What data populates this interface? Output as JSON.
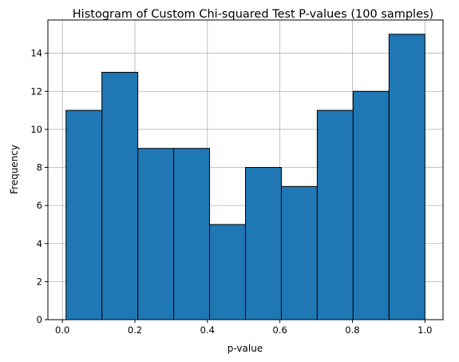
{
  "chart_data": {
    "type": "bar",
    "title": "Histogram of Custom Chi-squared Test P-values (100 samples)",
    "xlabel": "p-value",
    "ylabel": "Frequency",
    "xlim": [
      -0.04,
      1.05
    ],
    "ylim": [
      0,
      15.75
    ],
    "bin_edges": [
      0.01,
      0.109,
      0.208,
      0.307,
      0.406,
      0.505,
      0.604,
      0.703,
      0.802,
      0.901,
      1.0
    ],
    "values": [
      11,
      13,
      9,
      9,
      5,
      8,
      7,
      11,
      12,
      15
    ],
    "xticks": [
      "0.0",
      "0.2",
      "0.4",
      "0.6",
      "0.8",
      "1.0"
    ],
    "xtick_values": [
      0.0,
      0.2,
      0.4,
      0.6,
      0.8,
      1.0
    ],
    "yticks": [
      "0",
      "2",
      "4",
      "6",
      "8",
      "10",
      "12",
      "14"
    ],
    "ytick_values": [
      0,
      2,
      4,
      6,
      8,
      10,
      12,
      14
    ],
    "grid": true,
    "bar_color": "#1f77b4",
    "edge_color": "#000000",
    "grid_color": "#b0b0b0"
  }
}
